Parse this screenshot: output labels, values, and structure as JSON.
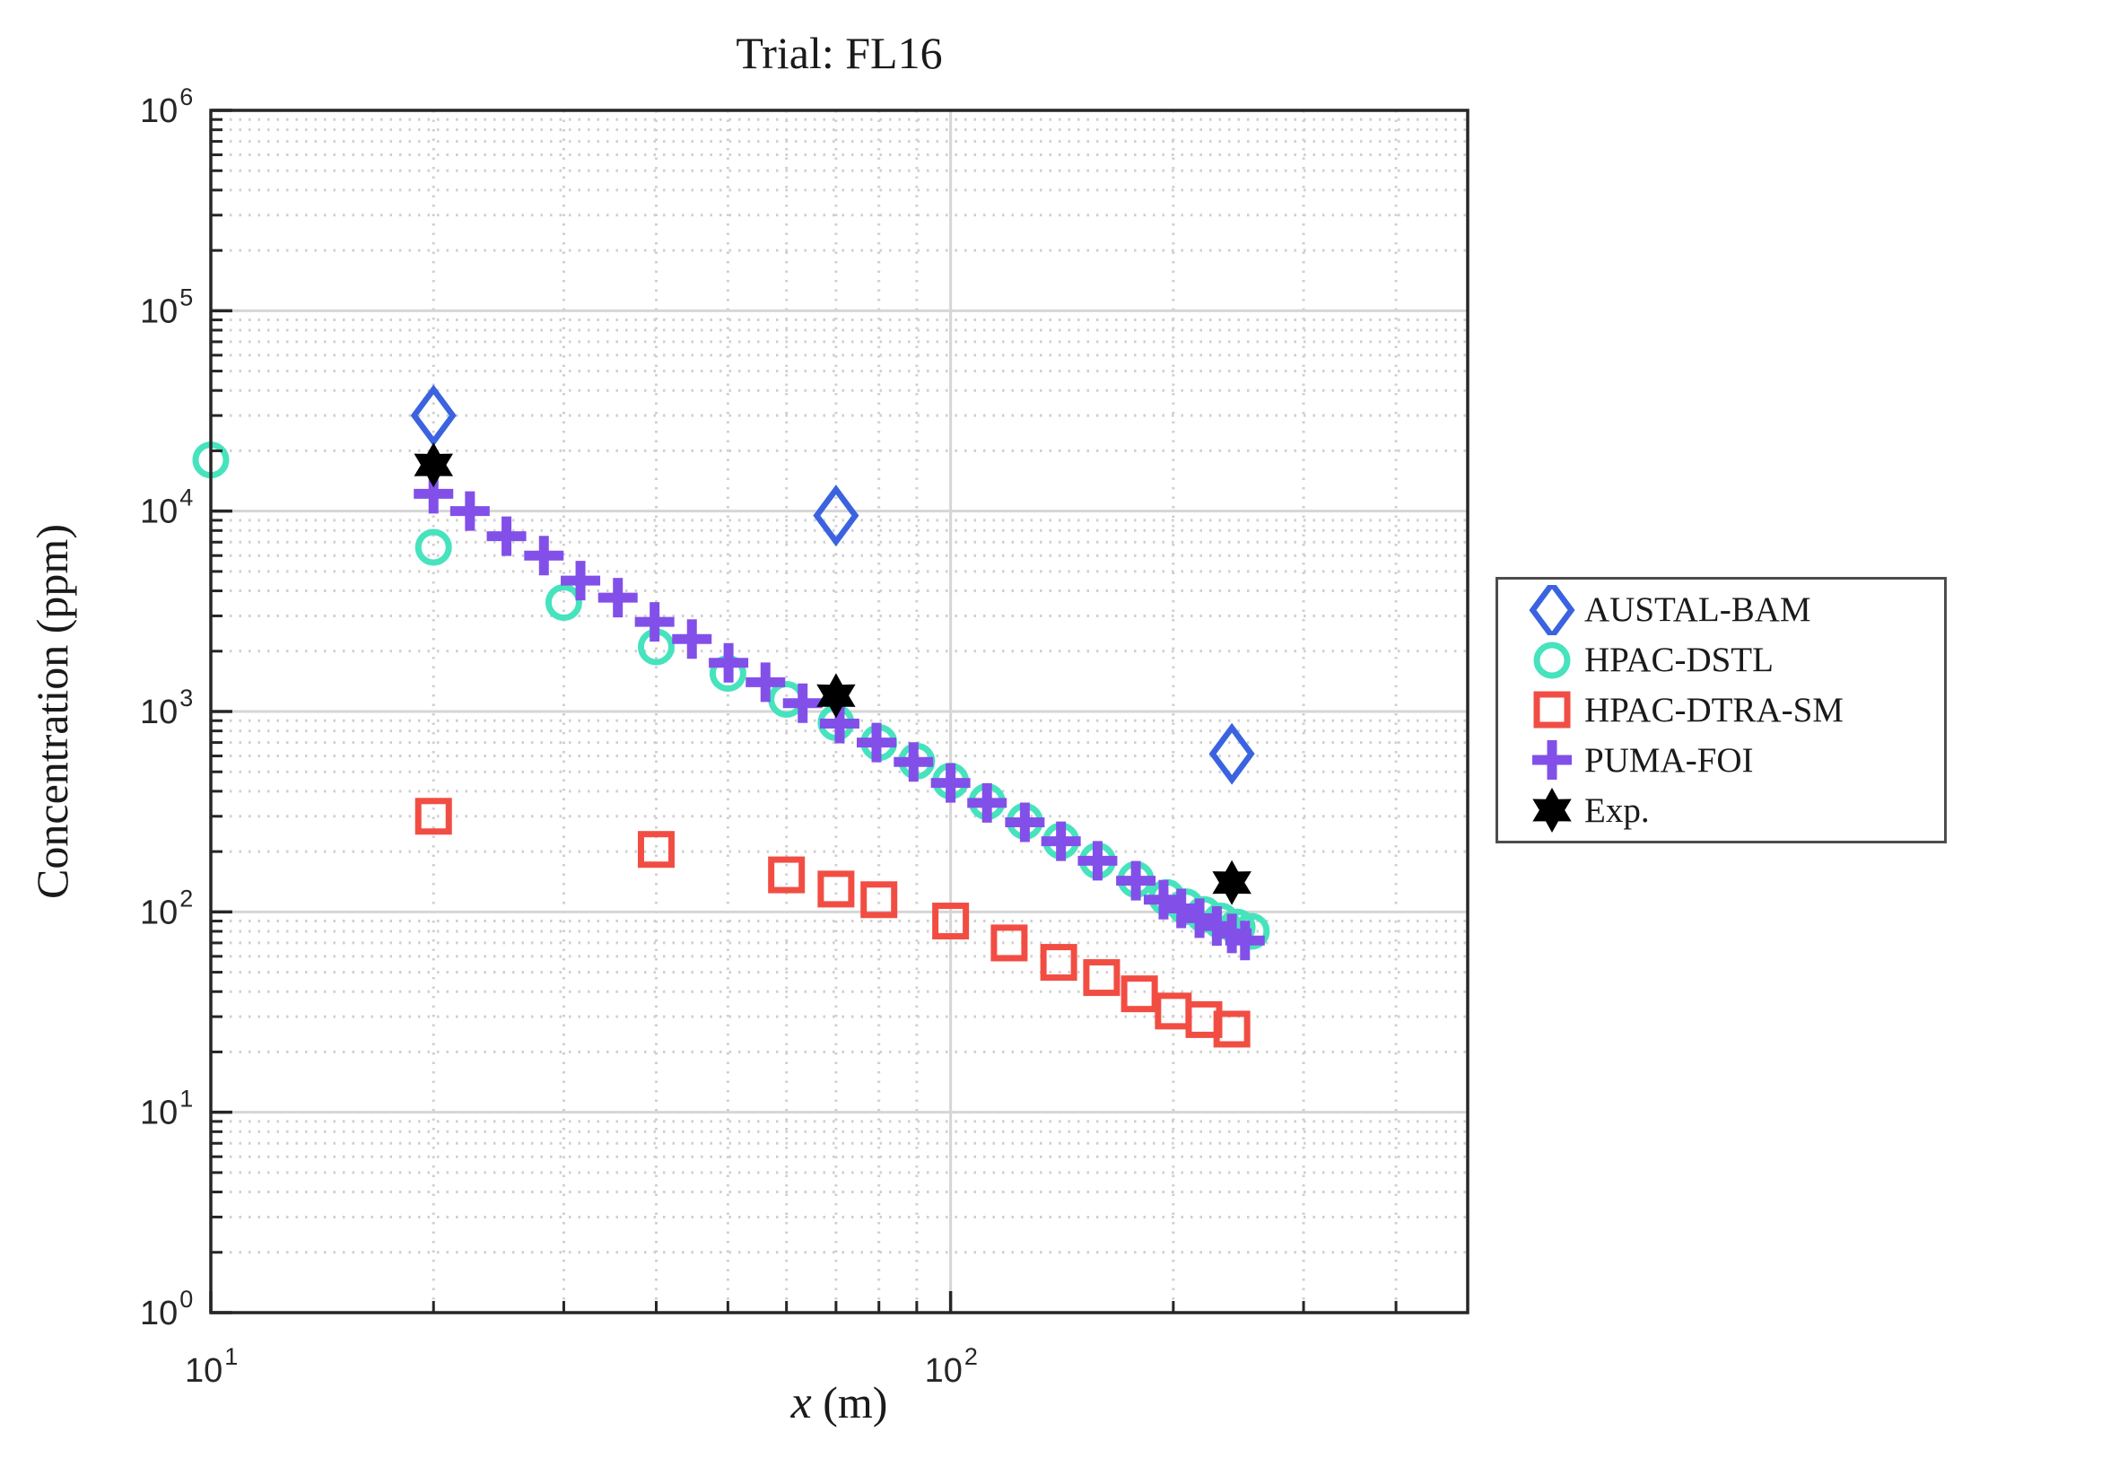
{
  "figure": {
    "background": "#ffffff",
    "axes_color": "#262626",
    "major_grid_color": "#d6d6d6",
    "minor_grid_color": "#cfcfcf"
  },
  "chart_data": {
    "type": "scatter",
    "title": "Trial: FL16",
    "xlabel_var": "x",
    "xlabel_unit": " (m)",
    "ylabel": "Concentration (ppm)",
    "x_scale": "log",
    "y_scale": "log",
    "xlim": [
      10,
      500
    ],
    "ylim": [
      1,
      1000000
    ],
    "x_tick_exponents": [
      1,
      2
    ],
    "y_tick_exponents": [
      0,
      1,
      2,
      3,
      4,
      5,
      6
    ],
    "grid": {
      "major": true,
      "minor": true
    },
    "legend_position": "outside-right",
    "series": [
      {
        "name": "AUSTAL-BAM",
        "marker": "diamond",
        "color": "#3B63E0",
        "x": [
          20,
          70,
          240
        ],
        "y": [
          30000,
          9500,
          615
        ]
      },
      {
        "name": "HPAC-DSTL",
        "marker": "circle",
        "color": "#46E3BD",
        "x": [
          10,
          20,
          30,
          40,
          50,
          60,
          70,
          80,
          90,
          100,
          112,
          126,
          141,
          158,
          178,
          196,
          208,
          220,
          232,
          244,
          255
        ],
        "y": [
          18000,
          6600,
          3500,
          2100,
          1550,
          1150,
          880,
          700,
          565,
          450,
          355,
          283,
          226,
          180,
          145,
          118,
          106,
          97,
          90,
          84,
          80
        ]
      },
      {
        "name": "HPAC-DTRA-SM",
        "marker": "square",
        "color": "#F24D43",
        "x": [
          20,
          40,
          60,
          70,
          80,
          100,
          120,
          140,
          160,
          180,
          200,
          220,
          240
        ],
        "y": [
          300,
          205,
          153,
          130,
          115,
          90,
          70,
          56,
          47,
          39,
          32,
          29,
          26
        ]
      },
      {
        "name": "PUMA-FOI",
        "marker": "plus",
        "color": "#8250E9",
        "x": [
          20,
          22.4,
          25.1,
          28.2,
          31.6,
          35.5,
          39.8,
          44.7,
          50.1,
          56.2,
          63.1,
          70.8,
          79.4,
          89.1,
          100,
          112,
          126,
          141,
          158,
          178,
          194,
          205,
          217,
          229,
          240,
          250
        ],
        "y": [
          12200,
          10000,
          7500,
          6000,
          4500,
          3700,
          2800,
          2300,
          1750,
          1400,
          1100,
          870,
          700,
          560,
          440,
          350,
          280,
          225,
          180,
          143,
          115,
          104,
          93,
          85,
          78,
          72
        ]
      },
      {
        "name": "Exp.",
        "marker": "hexagram",
        "color": "#000000",
        "filled": true,
        "x": [
          20,
          70,
          240
        ],
        "y": [
          17000,
          1200,
          140
        ]
      }
    ]
  }
}
